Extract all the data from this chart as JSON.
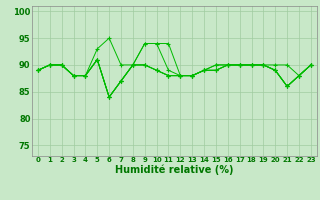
{
  "xlabel": "Humidité relative (%)",
  "background_color": "#c8e8c8",
  "plot_background": "#c8e8c8",
  "grid_color": "#a0cca0",
  "line_color": "#00bb00",
  "xlim": [
    -0.5,
    23.5
  ],
  "ylim": [
    73,
    101
  ],
  "yticks": [
    75,
    80,
    85,
    90,
    95,
    100
  ],
  "xticks": [
    0,
    1,
    2,
    3,
    4,
    5,
    6,
    7,
    8,
    9,
    10,
    11,
    12,
    13,
    14,
    15,
    16,
    17,
    18,
    19,
    20,
    21,
    22,
    23
  ],
  "series": [
    [
      89,
      90,
      90,
      88,
      88,
      93,
      95,
      90,
      90,
      94,
      94,
      94,
      88,
      88,
      89,
      90,
      90,
      90,
      90,
      90,
      90,
      90,
      88,
      90
    ],
    [
      89,
      90,
      90,
      88,
      88,
      91,
      84,
      87,
      90,
      94,
      94,
      89,
      88,
      88,
      89,
      89,
      90,
      90,
      90,
      90,
      89,
      86,
      88,
      90
    ],
    [
      89,
      90,
      90,
      88,
      88,
      91,
      84,
      87,
      90,
      90,
      89,
      88,
      88,
      88,
      89,
      90,
      90,
      90,
      90,
      90,
      89,
      86,
      88,
      90
    ],
    [
      89,
      90,
      90,
      88,
      88,
      91,
      84,
      87,
      90,
      90,
      89,
      88,
      88,
      88,
      89,
      89,
      90,
      90,
      90,
      90,
      89,
      86,
      88,
      90
    ],
    [
      89,
      90,
      90,
      88,
      88,
      91,
      84,
      87,
      90,
      90,
      89,
      88,
      88,
      88,
      89,
      89,
      90,
      90,
      90,
      90,
      89,
      86,
      88,
      90
    ]
  ]
}
